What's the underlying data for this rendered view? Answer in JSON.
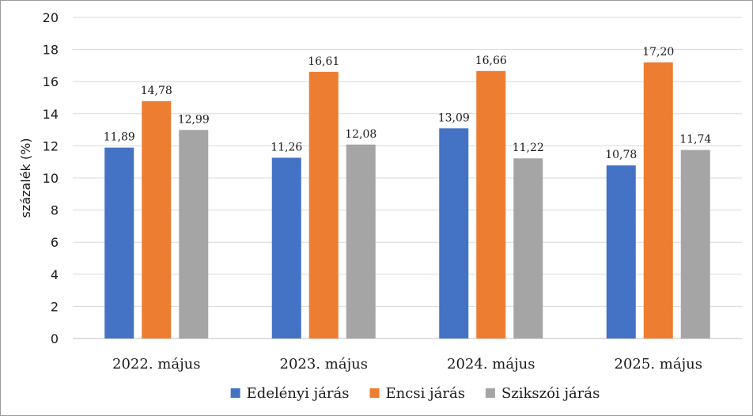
{
  "chart_data": {
    "type": "bar",
    "categories": [
      "2022. május",
      "2023. május",
      "2024. május",
      "2025. május"
    ],
    "series": [
      {
        "name": "Edelényi járás",
        "values": [
          11.89,
          11.26,
          13.09,
          10.78
        ],
        "labels": [
          "11,89",
          "11,26",
          "13,09",
          "10,78"
        ],
        "color": "#4472c4"
      },
      {
        "name": "Encsi járás",
        "values": [
          14.78,
          16.61,
          16.66,
          17.2
        ],
        "labels": [
          "14,78",
          "16,61",
          "16,66",
          "17,20"
        ],
        "color": "#ed7d31"
      },
      {
        "name": "Szikszói járás",
        "values": [
          12.99,
          12.08,
          11.22,
          11.74
        ],
        "labels": [
          "12,99",
          "12,08",
          "11,22",
          "11,74"
        ],
        "color": "#a5a5a5"
      }
    ],
    "ylabel": "százalék (%)",
    "ylim": [
      0,
      20
    ],
    "yticks": [
      0,
      2,
      4,
      6,
      8,
      10,
      12,
      14,
      16,
      18,
      20
    ],
    "grid": true,
    "legend": "bottom"
  }
}
